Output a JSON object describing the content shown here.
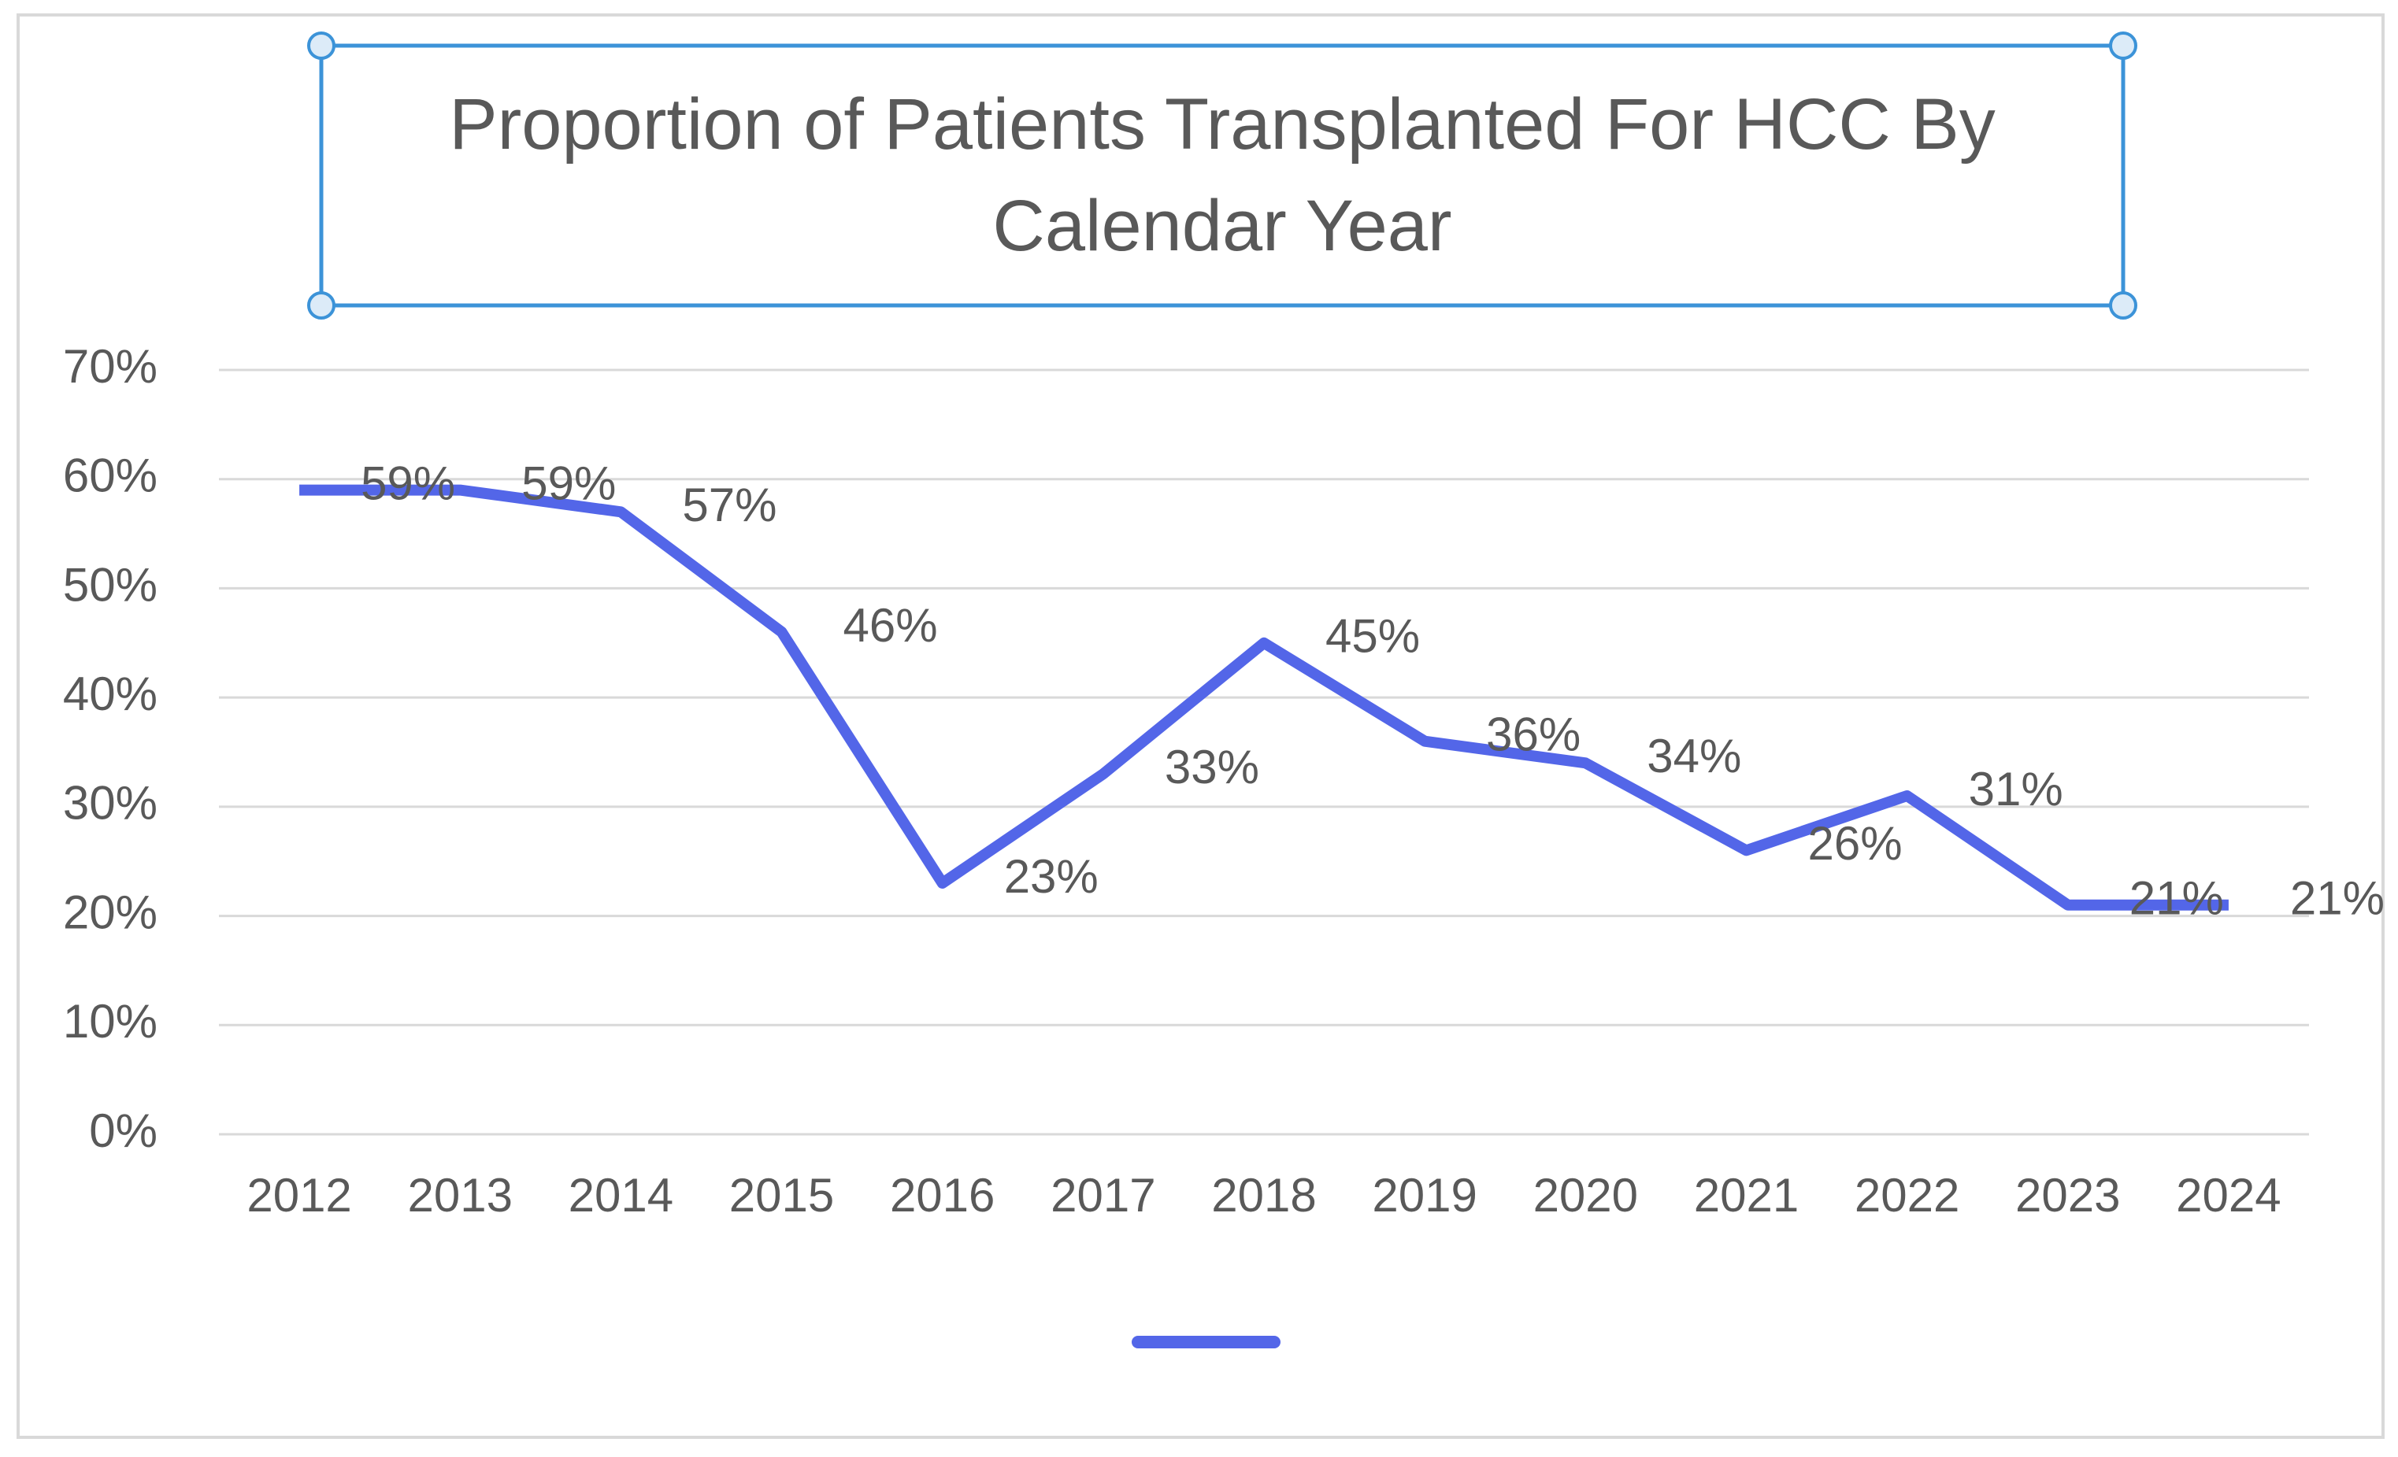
{
  "chart_data": {
    "type": "line",
    "title": "Proportion of Patients Transplanted For HCC By Calendar Year",
    "categories": [
      "2012",
      "2013",
      "2014",
      "2015",
      "2016",
      "2017",
      "2018",
      "2019",
      "2020",
      "2021",
      "2022",
      "2023",
      "2024"
    ],
    "values": [
      59,
      59,
      57,
      46,
      23,
      33,
      45,
      36,
      34,
      26,
      31,
      21,
      21
    ],
    "value_labels": [
      "59%",
      "59%",
      "57%",
      "46%",
      "23%",
      "33%",
      "45%",
      "36%",
      "34%",
      "26%",
      "31%",
      "21%",
      "21%"
    ],
    "color": "#5366e8",
    "ylim": [
      0,
      70
    ],
    "yticks": [
      {
        "value": 0,
        "label": "0%"
      },
      {
        "value": 10,
        "label": "10%"
      },
      {
        "value": 20,
        "label": "20%"
      },
      {
        "value": 30,
        "label": "30%"
      },
      {
        "value": 40,
        "label": "40%"
      },
      {
        "value": 50,
        "label": "50%"
      },
      {
        "value": 60,
        "label": "60%"
      },
      {
        "value": 70,
        "label": "70%"
      }
    ],
    "grid": true
  }
}
